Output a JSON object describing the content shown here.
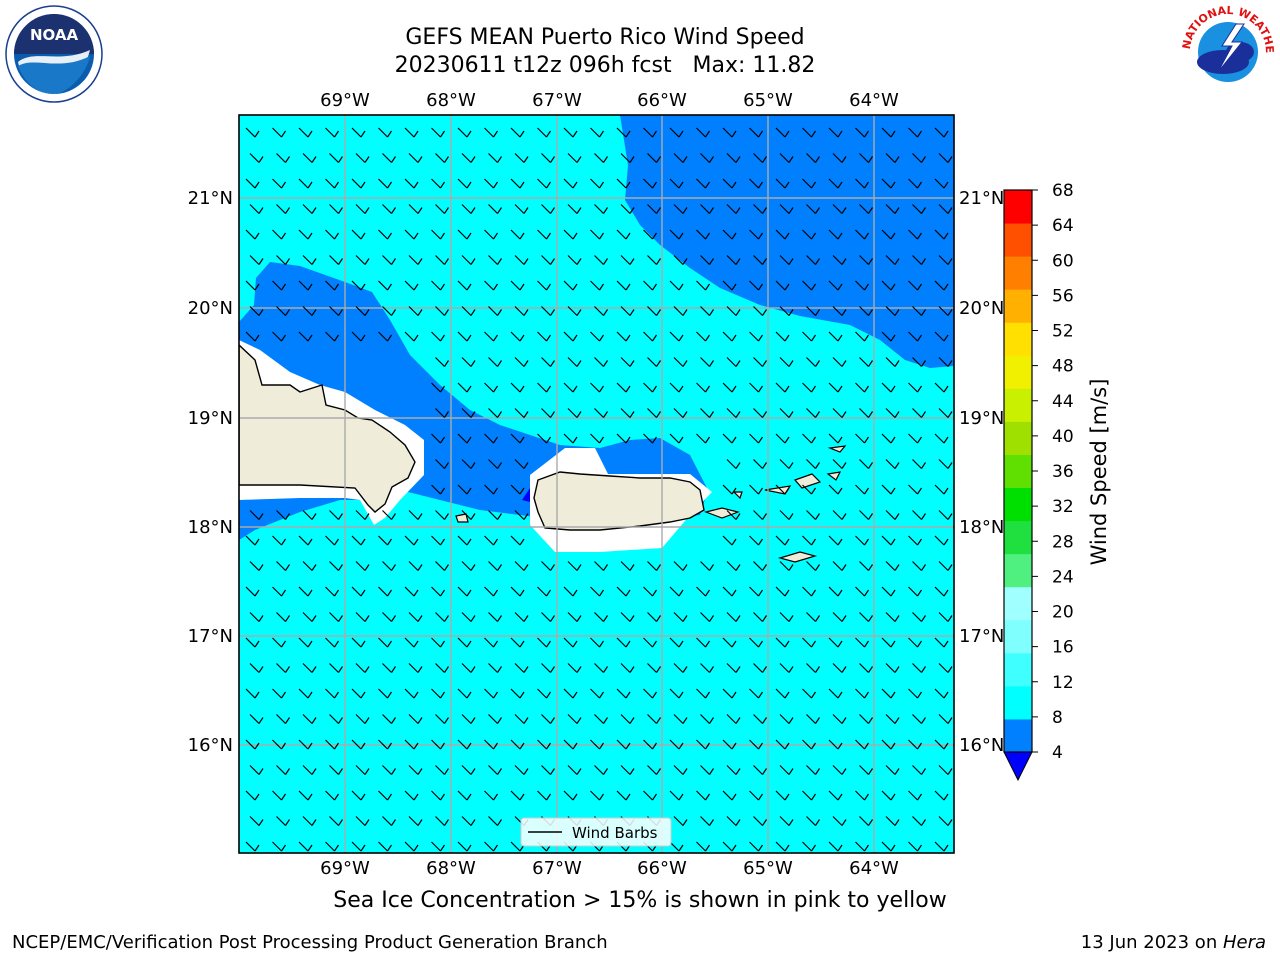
{
  "title": {
    "line1": "GEFS MEAN Puerto Rico Wind Speed",
    "line2": "20230611 t12z 096h fcst   Max: 11.82"
  },
  "map": {
    "lon_labels": [
      "69°W",
      "68°W",
      "67°W",
      "66°W",
      "65°W",
      "64°W"
    ],
    "lat_labels": [
      "21°N",
      "20°N",
      "19°N",
      "18°N",
      "17°N",
      "16°N"
    ],
    "legend_label": "Wind Barbs",
    "ocean_color": "#00ffff",
    "band_color": "#0080ff",
    "land_color": "#efedda"
  },
  "colorbar": {
    "label": "Wind Speed [m/s]",
    "ticks": [
      "4",
      "8",
      "12",
      "16",
      "20",
      "24",
      "28",
      "32",
      "36",
      "40",
      "44",
      "48",
      "52",
      "56",
      "60",
      "64",
      "68"
    ],
    "colors": [
      "#0080ff",
      "#00ffff",
      "#40ffff",
      "#80ffff",
      "#a0ffff",
      "#50f080",
      "#20e040",
      "#00e000",
      "#60e000",
      "#a0e000",
      "#c8f000",
      "#f0f000",
      "#ffe000",
      "#ffb000",
      "#ff8000",
      "#ff5000",
      "#ff2000",
      "#ff0000"
    ],
    "extend_color": "#0000ff"
  },
  "footer": {
    "note": "Sea Ice Concentration > 15% is shown in pink to yellow",
    "credit": "NCEP/EMC/Verification Post Processing Product Generation Branch",
    "date": "13 Jun 2023 on ",
    "host": "Hera"
  },
  "logos": {
    "noaa": "NOAA",
    "nws": "NATIONAL WEATHER SERVICE"
  }
}
